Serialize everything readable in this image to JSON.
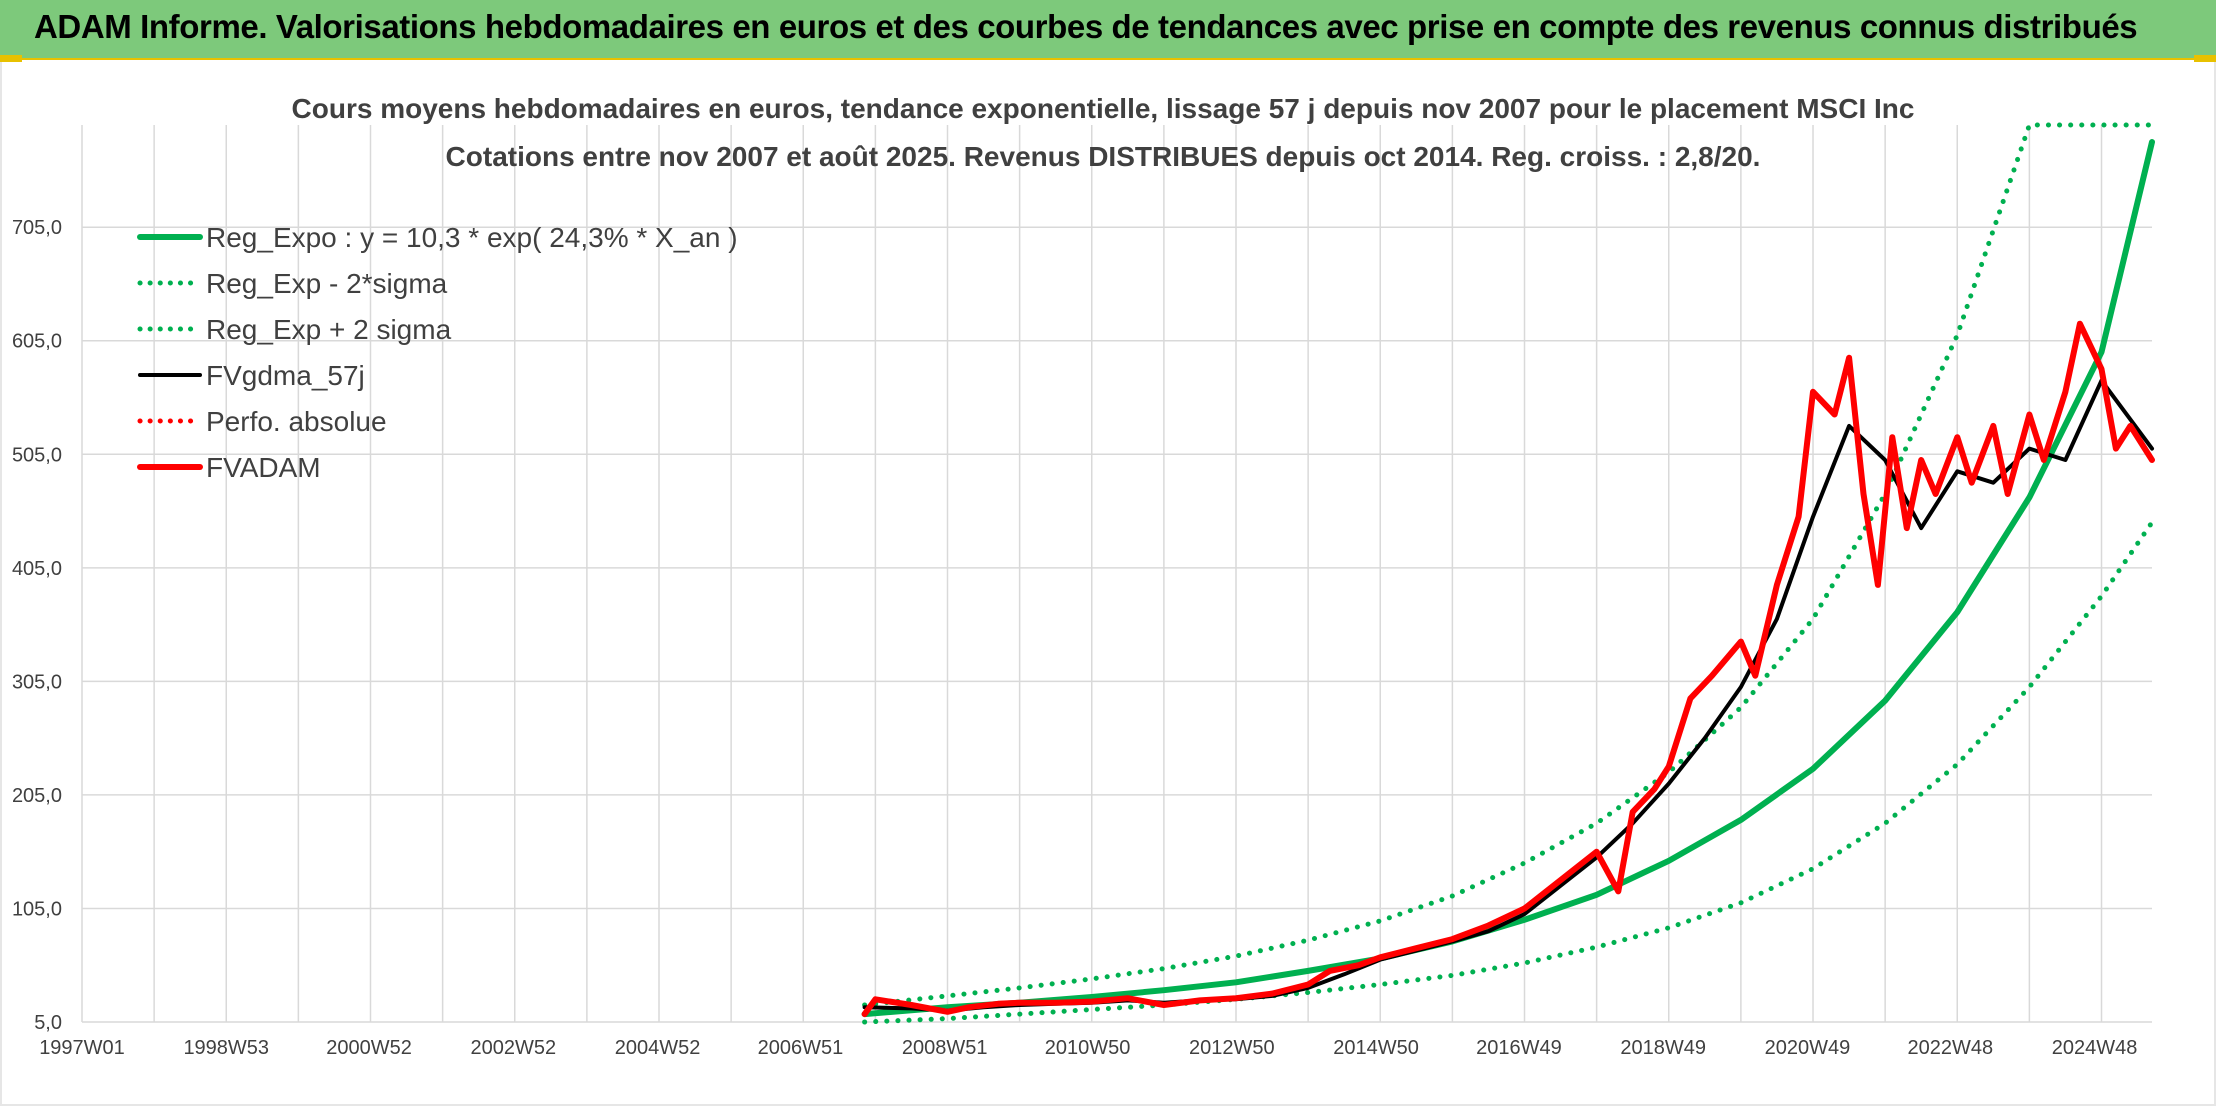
{
  "banner": {
    "title": "ADAM Informe. Valorisations hebdomadaires en euros et des courbes de tendances avec prise en compte des revenus connus distribués"
  },
  "colors": {
    "banner_bg": "#7dc97b",
    "reg_expo": "#00b050",
    "fvadam": "#ff0000",
    "fvgdma": "#000000"
  },
  "chart_data": {
    "type": "line",
    "title": "Cours moyens hebdomadaires en euros, tendance exponentielle, lissage 57 j depuis nov 2007 pour le placement MSCI Inc",
    "subtitle": "Cotations entre nov 2007 et août 2025. Revenus DISTRIBUES depuis oct 2014. Reg. croiss. : 2,8/20.",
    "xlabel": "",
    "ylabel": "",
    "ylim": [
      5,
      795
    ],
    "xlim": [
      1997.0,
      2025.7
    ],
    "y_ticks": [
      "5,0",
      "105,0",
      "205,0",
      "305,0",
      "405,0",
      "505,0",
      "605,0",
      "705,0"
    ],
    "x_ticks": [
      "1997W01",
      "1998W53",
      "2000W52",
      "2002W52",
      "2004W52",
      "2006W51",
      "2008W51",
      "2010W50",
      "2012W50",
      "2014W50",
      "2016W49",
      "2018W49",
      "2020W49",
      "2022W48",
      "2024W48"
    ],
    "grid": true,
    "legend_position": "top-left",
    "series": [
      {
        "name": "Reg_Expo : y = 10,3 * exp( 24,3% *  X_an )",
        "style": "solid",
        "color": "#00b050",
        "x": [
          2007.85,
          2009,
          2010,
          2011,
          2012,
          2013,
          2014,
          2015,
          2016,
          2017,
          2018,
          2019,
          2020,
          2021,
          2022,
          2023,
          2024,
          2025,
          2025.7
        ],
        "y": [
          12,
          18,
          22,
          27,
          33,
          40,
          50,
          61,
          76,
          95,
          117,
          147,
          183,
          228,
          288,
          366,
          467,
          595,
          780
        ]
      },
      {
        "name": "Reg_Exp - 2*sigma",
        "style": "dotted",
        "color": "#00b050",
        "x": [
          2007.85,
          2009,
          2010,
          2011,
          2012,
          2013,
          2014,
          2015,
          2016,
          2017,
          2018,
          2019,
          2020,
          2021,
          2022,
          2023,
          2024,
          2025,
          2025.7
        ],
        "y": [
          5,
          8,
          12,
          16,
          20,
          25,
          31,
          38,
          46,
          57,
          71,
          88,
          110,
          140,
          180,
          232,
          300,
          380,
          445
        ]
      },
      {
        "name": "Reg_Exp + 2 sigma",
        "style": "dotted",
        "color": "#00b050",
        "x": [
          2007.85,
          2009,
          2010,
          2011,
          2012,
          2013,
          2014,
          2015,
          2016,
          2017,
          2018,
          2019,
          2020,
          2021,
          2022,
          2023,
          2024,
          2025,
          2025.7
        ],
        "y": [
          20,
          28,
          35,
          43,
          52,
          63,
          77,
          94,
          116,
          145,
          180,
          225,
          282,
          360,
          470,
          610,
          795,
          795,
          795
        ]
      },
      {
        "name": "FVgdma_57j",
        "style": "solid",
        "color": "#000000",
        "x": [
          2007.85,
          2008.5,
          2009,
          2009.5,
          2010,
          2010.5,
          2011,
          2011.5,
          2012,
          2012.5,
          2013,
          2013.5,
          2014,
          2014.5,
          2015,
          2015.5,
          2016,
          2016.5,
          2017,
          2017.5,
          2018,
          2018.5,
          2019,
          2019.5,
          2020,
          2020.5,
          2021,
          2021.5,
          2022,
          2022.5,
          2023,
          2023.5,
          2024,
          2024.5,
          2025,
          2025.7
        ],
        "y": [
          18,
          17,
          15,
          18,
          20,
          21,
          22,
          24,
          22,
          24,
          25,
          28,
          35,
          47,
          60,
          68,
          76,
          85,
          100,
          125,
          150,
          180,
          215,
          255,
          300,
          360,
          450,
          530,
          500,
          440,
          490,
          480,
          510,
          500,
          570,
          510
        ]
      },
      {
        "name": "Perfo. absolue",
        "style": "dotted",
        "color": "#ff0000",
        "x": [],
        "y": []
      },
      {
        "name": "FVADAM",
        "style": "solid",
        "color": "#ff0000",
        "x": [
          2007.85,
          2008.0,
          2008.5,
          2009,
          2009.3,
          2009.7,
          2010,
          2010.5,
          2011,
          2011.5,
          2012,
          2012.5,
          2013,
          2013.5,
          2014,
          2014.3,
          2014.7,
          2015,
          2015.5,
          2016,
          2016.5,
          2017,
          2017.5,
          2018,
          2018.3,
          2018.5,
          2018.8,
          2019,
          2019.3,
          2019.6,
          2020,
          2020.2,
          2020.5,
          2020.8,
          2021,
          2021.3,
          2021.5,
          2021.7,
          2021.9,
          2022.1,
          2022.3,
          2022.5,
          2022.7,
          2023,
          2023.2,
          2023.5,
          2023.7,
          2024,
          2024.2,
          2024.5,
          2024.7,
          2025,
          2025.2,
          2025.4,
          2025.7
        ],
        "y": [
          12,
          25,
          20,
          14,
          18,
          21,
          22,
          22,
          23,
          26,
          20,
          24,
          26,
          30,
          38,
          50,
          55,
          62,
          70,
          78,
          90,
          105,
          130,
          155,
          120,
          190,
          210,
          230,
          290,
          310,
          340,
          310,
          390,
          450,
          560,
          540,
          590,
          470,
          390,
          520,
          440,
          500,
          470,
          520,
          480,
          530,
          470,
          540,
          500,
          560,
          620,
          580,
          510,
          530,
          500
        ]
      }
    ]
  }
}
